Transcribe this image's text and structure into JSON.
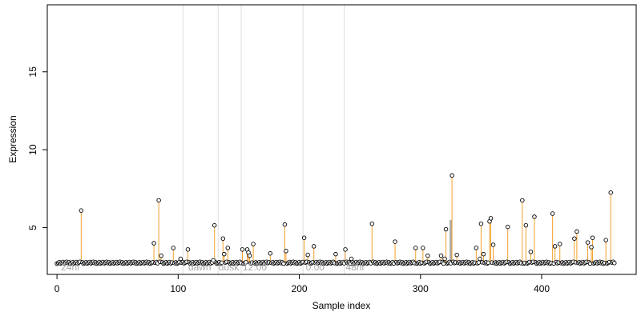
{
  "chart_data": {
    "type": "scatter",
    "xlabel": "Sample index",
    "ylabel": "Expression",
    "xlim": [
      -8,
      478
    ],
    "ylim": [
      2.0,
      19.3
    ],
    "x_ticks": [
      0,
      100,
      200,
      300,
      400
    ],
    "y_ticks": [
      5,
      10,
      15
    ],
    "grid": false,
    "baseline_value": 2.75,
    "colors": {
      "points": "#000000",
      "stems": "#f2a02b",
      "baseline": "#8fa4ff",
      "vlines": "#dddddd",
      "annotations": "#a8a8a8",
      "highlight_stem": "#aaaaaa"
    },
    "vlines_x": [
      104,
      133,
      152,
      203,
      237
    ],
    "annotations": [
      {
        "x": 2,
        "y": 2.0,
        "label": "24hr"
      },
      {
        "x": 107,
        "y": 2.0,
        "label": "dawn"
      },
      {
        "x": 132,
        "y": 2.0,
        "label": "dusk"
      },
      {
        "x": 152,
        "y": 2.0,
        "label": "12:00"
      },
      {
        "x": 204,
        "y": 2.0,
        "label": "0:00"
      },
      {
        "x": 237,
        "y": 2.0,
        "label": "48hr"
      }
    ],
    "highlight_stem": {
      "x": 325,
      "y": 5.5
    },
    "peaks": [
      {
        "x": 20,
        "y": 6.1
      },
      {
        "x": 80,
        "y": 4.0
      },
      {
        "x": 84,
        "y": 6.75
      },
      {
        "x": 86,
        "y": 3.2
      },
      {
        "x": 96,
        "y": 3.7
      },
      {
        "x": 102,
        "y": 3.0
      },
      {
        "x": 108,
        "y": 3.6
      },
      {
        "x": 129,
        "y": 2.9
      },
      {
        "x": 130,
        "y": 5.15
      },
      {
        "x": 137,
        "y": 4.3
      },
      {
        "x": 138,
        "y": 3.3
      },
      {
        "x": 141,
        "y": 3.7
      },
      {
        "x": 153,
        "y": 3.6
      },
      {
        "x": 157,
        "y": 3.6
      },
      {
        "x": 158,
        "y": 3.4
      },
      {
        "x": 159,
        "y": 3.2
      },
      {
        "x": 162,
        "y": 3.95
      },
      {
        "x": 176,
        "y": 3.35
      },
      {
        "x": 188,
        "y": 5.2
      },
      {
        "x": 189,
        "y": 3.5
      },
      {
        "x": 204,
        "y": 4.35
      },
      {
        "x": 207,
        "y": 3.25
      },
      {
        "x": 212,
        "y": 3.8
      },
      {
        "x": 230,
        "y": 3.3
      },
      {
        "x": 238,
        "y": 3.6
      },
      {
        "x": 243,
        "y": 3.0
      },
      {
        "x": 260,
        "y": 5.25
      },
      {
        "x": 279,
        "y": 4.1
      },
      {
        "x": 296,
        "y": 3.7
      },
      {
        "x": 302,
        "y": 3.7
      },
      {
        "x": 306,
        "y": 3.2
      },
      {
        "x": 317,
        "y": 3.2
      },
      {
        "x": 320,
        "y": 3.0
      },
      {
        "x": 321,
        "y": 4.9
      },
      {
        "x": 326,
        "y": 8.35
      },
      {
        "x": 330,
        "y": 3.25
      },
      {
        "x": 346,
        "y": 3.7
      },
      {
        "x": 349,
        "y": 3.0
      },
      {
        "x": 350,
        "y": 5.25
      },
      {
        "x": 352,
        "y": 3.3
      },
      {
        "x": 357,
        "y": 5.4
      },
      {
        "x": 358,
        "y": 5.6
      },
      {
        "x": 360,
        "y": 3.9
      },
      {
        "x": 372,
        "y": 5.05
      },
      {
        "x": 384,
        "y": 6.75
      },
      {
        "x": 387,
        "y": 5.15
      },
      {
        "x": 391,
        "y": 3.45
      },
      {
        "x": 394,
        "y": 5.7
      },
      {
        "x": 409,
        "y": 5.9
      },
      {
        "x": 411,
        "y": 3.8
      },
      {
        "x": 415,
        "y": 3.95
      },
      {
        "x": 427,
        "y": 4.3
      },
      {
        "x": 429,
        "y": 4.75
      },
      {
        "x": 438,
        "y": 4.05
      },
      {
        "x": 441,
        "y": 3.75
      },
      {
        "x": 442,
        "y": 4.35
      },
      {
        "x": 453,
        "y": 4.2
      },
      {
        "x": 457,
        "y": 7.25
      }
    ]
  }
}
